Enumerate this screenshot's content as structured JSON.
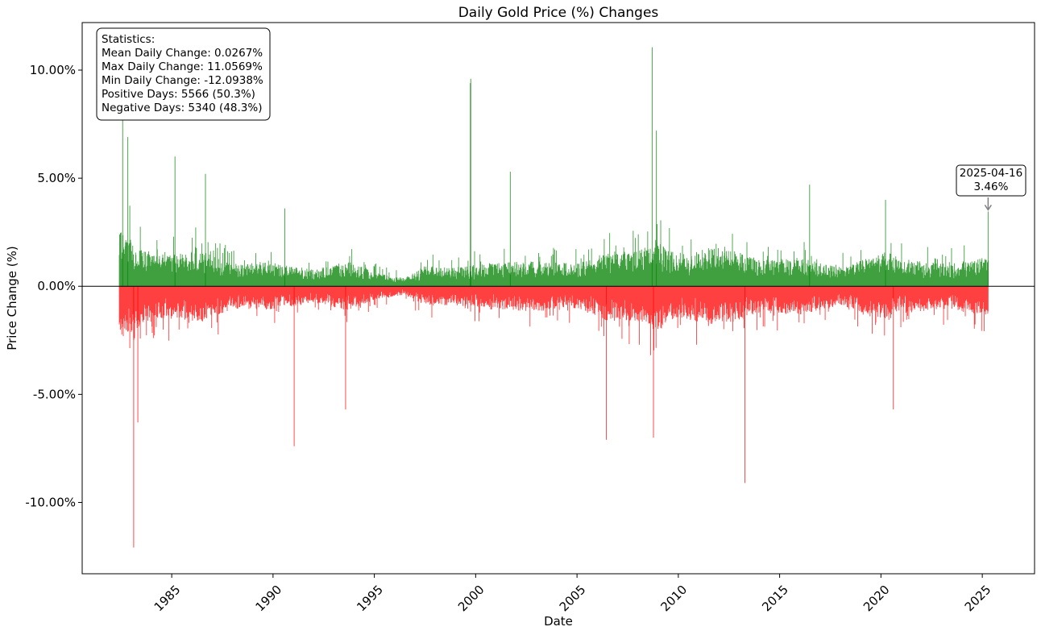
{
  "chart_data": {
    "type": "bar",
    "title": "Daily Gold Price (%) Changes",
    "xlabel": "Date",
    "ylabel": "Price Change (%)",
    "xlim": [
      "1980-08-01",
      "2027-08-01"
    ],
    "ylim": [
      -13.3,
      12.2
    ],
    "y_ticks": [
      -10,
      -5,
      0,
      5,
      10
    ],
    "y_tick_labels": [
      "-10.00%",
      "-5.00%",
      "0.00%",
      "5.00%",
      "10.00%"
    ],
    "x_ticks": [
      "1985-01-01",
      "1990-01-01",
      "1995-01-01",
      "2000-01-01",
      "2005-01-01",
      "2010-01-01",
      "2015-01-01",
      "2020-01-01",
      "2025-01-01"
    ],
    "x_tick_labels": [
      "1985",
      "1990",
      "1995",
      "2000",
      "2005",
      "2010",
      "2015",
      "2020",
      "2025"
    ],
    "date_range": [
      "1982-06-01",
      "2025-04-16"
    ],
    "series": [
      {
        "role": "positive",
        "color": "#008000",
        "count": 5566
      },
      {
        "role": "negative",
        "color": "#ff0000",
        "count": 5340
      }
    ],
    "notable_points": [
      {
        "date": "1982-08-01",
        "value": 8.4
      },
      {
        "date": "1982-11-01",
        "value": 6.9
      },
      {
        "date": "1983-02-15",
        "value": -12.09
      },
      {
        "date": "1983-05-01",
        "value": -6.3
      },
      {
        "date": "1985-03-01",
        "value": 6.0
      },
      {
        "date": "1986-09-01",
        "value": 5.2
      },
      {
        "date": "1990-08-01",
        "value": 3.6
      },
      {
        "date": "1991-01-17",
        "value": -7.4
      },
      {
        "date": "1993-08-01",
        "value": -5.7
      },
      {
        "date": "1999-09-28",
        "value": 9.4
      },
      {
        "date": "1999-10-05",
        "value": 9.6
      },
      {
        "date": "2001-09-17",
        "value": 5.3
      },
      {
        "date": "2006-06-13",
        "value": -7.1
      },
      {
        "date": "2008-09-17",
        "value": 11.06
      },
      {
        "date": "2008-10-10",
        "value": -7.0
      },
      {
        "date": "2008-12-01",
        "value": 7.2
      },
      {
        "date": "2013-04-15",
        "value": -9.1
      },
      {
        "date": "2016-06-24",
        "value": 4.7
      },
      {
        "date": "2020-03-24",
        "value": 4.0
      },
      {
        "date": "2020-08-11",
        "value": -5.7
      },
      {
        "date": "2025-04-16",
        "value": 3.46
      }
    ],
    "zero_line": true,
    "grid": false
  },
  "stats_box": {
    "header": "Statistics:",
    "lines": [
      "Mean Daily Change: 0.0267%",
      "Max Daily Change: 11.0569%",
      "Min Daily Change: -12.0938%",
      "Positive Days: 5566 (50.3%)",
      "Negative Days: 5340 (48.3%)"
    ]
  },
  "callout": {
    "date": "2025-04-16",
    "value": 3.46,
    "date_label": "2025-04-16",
    "value_label": "3.46%"
  }
}
